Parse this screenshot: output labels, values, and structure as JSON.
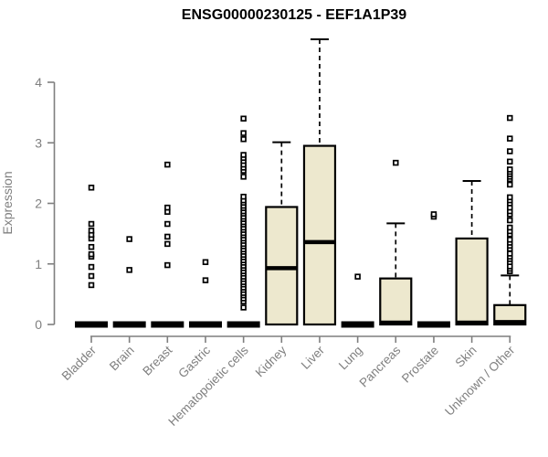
{
  "title": "ENSG00000230125 - EEF1A1P39",
  "y_axis": {
    "label": "Expression",
    "ticks": [
      "0",
      "1",
      "2",
      "3",
      "4"
    ]
  },
  "chart_data": {
    "type": "boxplot",
    "title": "ENSG00000230125 - EEF1A1P39",
    "xlabel": "",
    "ylabel": "Expression",
    "ylim": [
      0,
      4.77
    ],
    "y_ticks": [
      0,
      1,
      2,
      3,
      4
    ],
    "grid": false,
    "legend": false,
    "categories": [
      "Bladder",
      "Brain",
      "Breast",
      "Gastric",
      "Hematopoietic cells",
      "Kidney",
      "Liver",
      "Lung",
      "Pancreas",
      "Prostate",
      "Skin",
      "Unknown / Other"
    ],
    "series": [
      {
        "category": "Bladder",
        "whisker_low": 0,
        "q1": 0,
        "median": 0,
        "q3": 0,
        "whisker_high": 0,
        "outliers": [
          0.65,
          0.8,
          0.95,
          1.12,
          1.16,
          1.28,
          1.42,
          1.48,
          1.55,
          1.66,
          2.26
        ]
      },
      {
        "category": "Brain",
        "whisker_low": 0,
        "q1": 0,
        "median": 0,
        "q3": 0,
        "whisker_high": 0,
        "outliers": [
          0.9,
          1.41
        ]
      },
      {
        "category": "Breast",
        "whisker_low": 0,
        "q1": 0,
        "median": 0,
        "q3": 0,
        "whisker_high": 0,
        "outliers": [
          0.98,
          1.33,
          1.45,
          1.66,
          1.86,
          1.93,
          2.64
        ]
      },
      {
        "category": "Gastric",
        "whisker_low": 0,
        "q1": 0,
        "median": 0,
        "q3": 0,
        "whisker_high": 0,
        "outliers": [
          0.73,
          1.03
        ]
      },
      {
        "category": "Hematopoietic cells",
        "whisker_low": 0,
        "q1": 0,
        "median": 0,
        "q3": 0,
        "whisker_high": 0,
        "outliers": [
          0.28,
          0.38,
          0.43,
          0.48,
          0.52,
          0.57,
          0.61,
          0.66,
          0.7,
          0.75,
          0.79,
          0.84,
          0.88,
          0.93,
          0.97,
          1.02,
          1.06,
          1.11,
          1.15,
          1.2,
          1.24,
          1.29,
          1.33,
          1.38,
          1.42,
          1.47,
          1.51,
          1.56,
          1.6,
          1.65,
          1.69,
          1.74,
          1.78,
          1.83,
          1.87,
          1.92,
          1.96,
          2.01,
          2.05,
          2.11,
          2.44,
          2.54,
          2.59,
          2.64,
          2.7,
          2.75,
          2.8,
          3.06,
          3.16,
          3.4
        ]
      },
      {
        "category": "Kidney",
        "whisker_low": 0,
        "q1": 0,
        "median": 0.93,
        "q3": 1.94,
        "whisker_high": 3.01,
        "outliers": []
      },
      {
        "category": "Liver",
        "whisker_low": 0,
        "q1": 0,
        "median": 1.36,
        "q3": 2.95,
        "whisker_high": 4.71,
        "outliers": []
      },
      {
        "category": "Lung",
        "whisker_low": 0,
        "q1": 0,
        "median": 0,
        "q3": 0,
        "whisker_high": 0,
        "outliers": [
          0.79
        ]
      },
      {
        "category": "Pancreas",
        "whisker_low": 0,
        "q1": 0,
        "median": 0.03,
        "q3": 0.76,
        "whisker_high": 1.67,
        "outliers": [
          2.67
        ]
      },
      {
        "category": "Prostate",
        "whisker_low": 0,
        "q1": 0,
        "median": 0,
        "q3": 0,
        "whisker_high": 0,
        "outliers": [
          1.78,
          1.82
        ]
      },
      {
        "category": "Skin",
        "whisker_low": 0,
        "q1": 0,
        "median": 0.03,
        "q3": 1.42,
        "whisker_high": 2.37,
        "outliers": []
      },
      {
        "category": "Unknown / Other",
        "whisker_low": 0,
        "q1": 0,
        "median": 0.04,
        "q3": 0.32,
        "whisker_high": 0.81,
        "outliers": [
          0.88,
          0.92,
          0.96,
          1.03,
          1.08,
          1.12,
          1.17,
          1.25,
          1.3,
          1.35,
          1.4,
          1.49,
          1.54,
          1.6,
          1.72,
          1.82,
          1.87,
          1.93,
          2.0,
          2.05,
          2.1,
          2.31,
          2.4,
          2.44,
          2.48,
          2.52,
          2.56,
          2.69,
          2.86,
          3.07,
          3.41
        ]
      }
    ],
    "style": {
      "box_fill": "#EDE8CE",
      "box_stroke": "#000000",
      "median_color": "#000000",
      "outlier_stroke": "#000000",
      "outlier_fill": "#ffffff",
      "axis_color": "#7f7f7f",
      "label_color": "#7f7f7f",
      "title_color": "#000000",
      "background": "#ffffff"
    }
  }
}
